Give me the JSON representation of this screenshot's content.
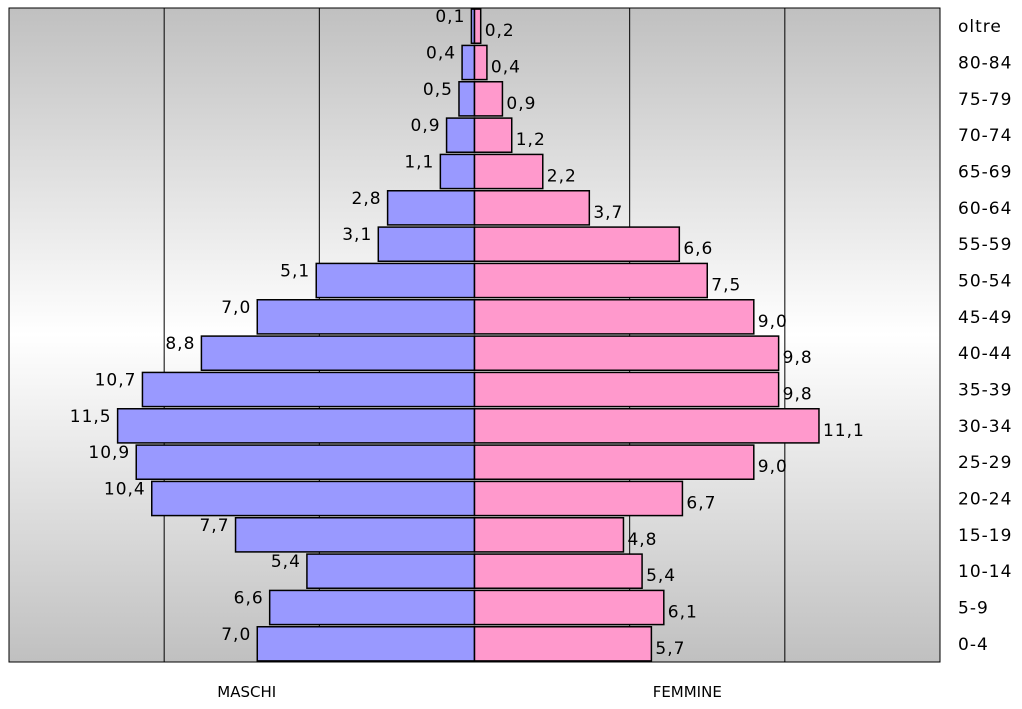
{
  "chart_data": {
    "type": "bar",
    "orientation": "horizontal-population-pyramid",
    "categories": [
      "oltre",
      "80-84",
      "75-79",
      "70-74",
      "65-69",
      "60-64",
      "55-59",
      "50-54",
      "45-49",
      "40-44",
      "35-39",
      "30-34",
      "25-29",
      "20-24",
      "15-19",
      "10-14",
      "5-9",
      "0-4"
    ],
    "series": [
      {
        "name": "MASCHI",
        "color": "#9999ff",
        "values": [
          0.1,
          0.4,
          0.5,
          0.9,
          1.1,
          2.8,
          3.1,
          5.1,
          7.0,
          8.8,
          10.7,
          11.5,
          10.9,
          10.4,
          7.7,
          5.4,
          6.6,
          7.0
        ],
        "labels": [
          "0,1",
          "0,4",
          "0,5",
          "0,9",
          "1,1",
          "2,8",
          "3,1",
          "5,1",
          "7,0",
          "8,8",
          "10,7",
          "11,5",
          "10,9",
          "10,4",
          "7,7",
          "5,4",
          "6,6",
          "7,0"
        ]
      },
      {
        "name": "FEMMINE",
        "color": "#ff99cc",
        "values": [
          0.2,
          0.4,
          0.9,
          1.2,
          2.2,
          3.7,
          6.6,
          7.5,
          9.0,
          9.8,
          9.8,
          11.1,
          9.0,
          6.7,
          4.8,
          5.4,
          6.1,
          5.7
        ],
        "labels": [
          "0,2",
          "0,4",
          "0,9",
          "1,2",
          "2,2",
          "3,7",
          "6,6",
          "7,5",
          "9,0",
          "9,8",
          "9,8",
          "11,1",
          "9,0",
          "6,7",
          "4,8",
          "5,4",
          "6,1",
          "5,7"
        ]
      }
    ],
    "xlim": [
      -15,
      15
    ],
    "gridlines_at": [
      -15,
      -10,
      -5,
      0,
      5,
      10,
      15
    ],
    "grid": true,
    "plot_background": "gradient-gray",
    "title": "",
    "xlabel": "",
    "ylabel": ""
  }
}
